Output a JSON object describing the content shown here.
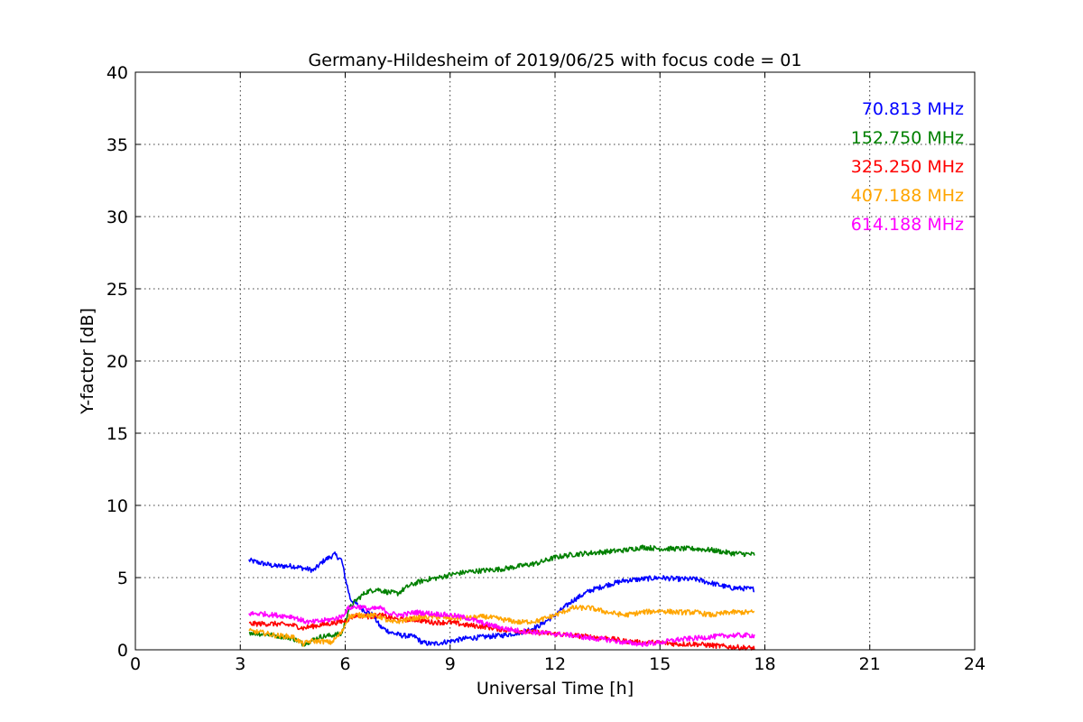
{
  "chart_data": {
    "type": "line",
    "title": "Germany-Hildesheim of 2019/06/25 with focus code = 01",
    "xlabel": "Universal Time [h]",
    "ylabel": "Y-factor [dB]",
    "xlim": [
      0,
      24
    ],
    "ylim": [
      0,
      40
    ],
    "xticks": [
      0,
      3,
      6,
      9,
      12,
      15,
      18,
      21,
      24
    ],
    "yticks": [
      0,
      5,
      10,
      15,
      20,
      25,
      30,
      35,
      40
    ],
    "grid": true,
    "legend_placement": "top-right",
    "series": [
      {
        "name": "70.813 MHz",
        "color": "#0000ff",
        "points": [
          [
            3.25,
            6.2
          ],
          [
            3.6,
            6.0
          ],
          [
            4.0,
            5.8
          ],
          [
            4.5,
            5.8
          ],
          [
            4.9,
            5.6
          ],
          [
            5.1,
            5.5
          ],
          [
            5.4,
            6.2
          ],
          [
            5.7,
            6.6
          ],
          [
            5.9,
            6.2
          ],
          [
            6.0,
            5.0
          ],
          [
            6.15,
            3.5
          ],
          [
            6.3,
            3.2
          ],
          [
            6.5,
            2.8
          ],
          [
            6.8,
            2.4
          ],
          [
            7.0,
            1.6
          ],
          [
            7.3,
            1.2
          ],
          [
            7.6,
            1.0
          ],
          [
            8.0,
            0.9
          ],
          [
            8.2,
            0.5
          ],
          [
            8.5,
            0.4
          ],
          [
            9.0,
            0.6
          ],
          [
            9.5,
            0.8
          ],
          [
            10.0,
            0.9
          ],
          [
            10.5,
            1.0
          ],
          [
            11.0,
            1.2
          ],
          [
            11.5,
            1.6
          ],
          [
            12.0,
            2.4
          ],
          [
            12.5,
            3.4
          ],
          [
            13.0,
            4.1
          ],
          [
            13.5,
            4.5
          ],
          [
            14.0,
            4.8
          ],
          [
            14.5,
            4.9
          ],
          [
            15.0,
            5.0
          ],
          [
            15.5,
            4.9
          ],
          [
            16.0,
            4.9
          ],
          [
            16.5,
            4.6
          ],
          [
            17.0,
            4.3
          ],
          [
            17.7,
            4.2
          ]
        ]
      },
      {
        "name": "152.750 MHz",
        "color": "#008000",
        "points": [
          [
            3.25,
            1.2
          ],
          [
            3.6,
            1.1
          ],
          [
            4.0,
            1.0
          ],
          [
            4.5,
            0.8
          ],
          [
            4.8,
            0.4
          ],
          [
            5.0,
            0.6
          ],
          [
            5.3,
            0.9
          ],
          [
            5.6,
            1.0
          ],
          [
            5.9,
            1.1
          ],
          [
            6.1,
            2.8
          ],
          [
            6.3,
            3.4
          ],
          [
            6.6,
            4.0
          ],
          [
            6.9,
            4.2
          ],
          [
            7.2,
            4.0
          ],
          [
            7.5,
            3.9
          ],
          [
            7.8,
            4.4
          ],
          [
            8.1,
            4.7
          ],
          [
            8.4,
            4.9
          ],
          [
            8.7,
            5.0
          ],
          [
            9.0,
            5.2
          ],
          [
            9.5,
            5.4
          ],
          [
            10.0,
            5.5
          ],
          [
            10.5,
            5.6
          ],
          [
            11.0,
            5.8
          ],
          [
            11.5,
            6.0
          ],
          [
            12.0,
            6.4
          ],
          [
            12.5,
            6.6
          ],
          [
            13.0,
            6.7
          ],
          [
            13.5,
            6.8
          ],
          [
            14.0,
            6.9
          ],
          [
            14.5,
            7.1
          ],
          [
            15.0,
            7.0
          ],
          [
            15.5,
            7.0
          ],
          [
            16.0,
            7.0
          ],
          [
            16.5,
            6.9
          ],
          [
            17.0,
            6.7
          ],
          [
            17.7,
            6.6
          ]
        ]
      },
      {
        "name": "325.250 MHz",
        "color": "#ff0000",
        "points": [
          [
            3.25,
            1.8
          ],
          [
            3.6,
            1.8
          ],
          [
            4.0,
            1.8
          ],
          [
            4.5,
            1.7
          ],
          [
            4.8,
            1.5
          ],
          [
            5.0,
            1.6
          ],
          [
            5.5,
            1.8
          ],
          [
            6.0,
            2.0
          ],
          [
            6.3,
            2.4
          ],
          [
            6.7,
            2.3
          ],
          [
            7.0,
            2.4
          ],
          [
            7.5,
            2.1
          ],
          [
            8.0,
            2.1
          ],
          [
            8.5,
            1.9
          ],
          [
            9.0,
            1.9
          ],
          [
            9.5,
            1.7
          ],
          [
            10.0,
            1.6
          ],
          [
            10.5,
            1.4
          ],
          [
            11.0,
            1.3
          ],
          [
            11.5,
            1.2
          ],
          [
            12.0,
            1.1
          ],
          [
            12.5,
            1.0
          ],
          [
            13.0,
            0.9
          ],
          [
            13.5,
            0.8
          ],
          [
            14.0,
            0.6
          ],
          [
            14.5,
            0.5
          ],
          [
            15.0,
            0.5
          ],
          [
            15.5,
            0.4
          ],
          [
            16.0,
            0.4
          ],
          [
            16.5,
            0.3
          ],
          [
            17.0,
            0.2
          ],
          [
            17.7,
            0.1
          ]
        ]
      },
      {
        "name": "407.188 MHz",
        "color": "#ffa500",
        "points": [
          [
            3.25,
            1.3
          ],
          [
            3.6,
            1.2
          ],
          [
            4.0,
            1.0
          ],
          [
            4.5,
            0.9
          ],
          [
            4.8,
            0.4
          ],
          [
            5.0,
            0.6
          ],
          [
            5.3,
            0.6
          ],
          [
            5.6,
            0.5
          ],
          [
            5.9,
            1.2
          ],
          [
            6.1,
            2.3
          ],
          [
            6.4,
            2.4
          ],
          [
            6.7,
            2.4
          ],
          [
            7.0,
            2.3
          ],
          [
            7.3,
            1.9
          ],
          [
            7.6,
            2.0
          ],
          [
            8.0,
            2.2
          ],
          [
            8.5,
            2.3
          ],
          [
            9.0,
            2.2
          ],
          [
            9.5,
            2.2
          ],
          [
            10.0,
            2.3
          ],
          [
            10.5,
            2.1
          ],
          [
            11.0,
            1.9
          ],
          [
            11.5,
            2.0
          ],
          [
            12.0,
            2.4
          ],
          [
            12.5,
            2.9
          ],
          [
            13.0,
            2.9
          ],
          [
            13.5,
            2.6
          ],
          [
            14.0,
            2.4
          ],
          [
            14.5,
            2.6
          ],
          [
            15.0,
            2.7
          ],
          [
            15.5,
            2.6
          ],
          [
            16.0,
            2.6
          ],
          [
            16.5,
            2.4
          ],
          [
            17.0,
            2.6
          ],
          [
            17.7,
            2.6
          ]
        ]
      },
      {
        "name": "614.188 MHz",
        "color": "#ff00ff",
        "points": [
          [
            3.25,
            2.5
          ],
          [
            3.6,
            2.5
          ],
          [
            4.0,
            2.4
          ],
          [
            4.5,
            2.3
          ],
          [
            4.8,
            2.0
          ],
          [
            5.0,
            1.9
          ],
          [
            5.3,
            2.0
          ],
          [
            5.6,
            2.1
          ],
          [
            5.9,
            2.3
          ],
          [
            6.1,
            2.9
          ],
          [
            6.4,
            3.0
          ],
          [
            6.7,
            2.8
          ],
          [
            7.0,
            2.9
          ],
          [
            7.3,
            2.5
          ],
          [
            7.6,
            2.4
          ],
          [
            8.0,
            2.6
          ],
          [
            8.5,
            2.5
          ],
          [
            9.0,
            2.4
          ],
          [
            9.5,
            2.2
          ],
          [
            10.0,
            1.8
          ],
          [
            10.5,
            1.5
          ],
          [
            11.0,
            1.3
          ],
          [
            11.5,
            1.2
          ],
          [
            12.0,
            1.1
          ],
          [
            12.5,
            1.0
          ],
          [
            13.0,
            0.8
          ],
          [
            13.5,
            0.7
          ],
          [
            14.0,
            0.5
          ],
          [
            14.5,
            0.4
          ],
          [
            15.0,
            0.5
          ],
          [
            15.5,
            0.7
          ],
          [
            16.0,
            0.8
          ],
          [
            16.5,
            0.9
          ],
          [
            17.0,
            1.0
          ],
          [
            17.7,
            1.0
          ]
        ]
      }
    ]
  }
}
